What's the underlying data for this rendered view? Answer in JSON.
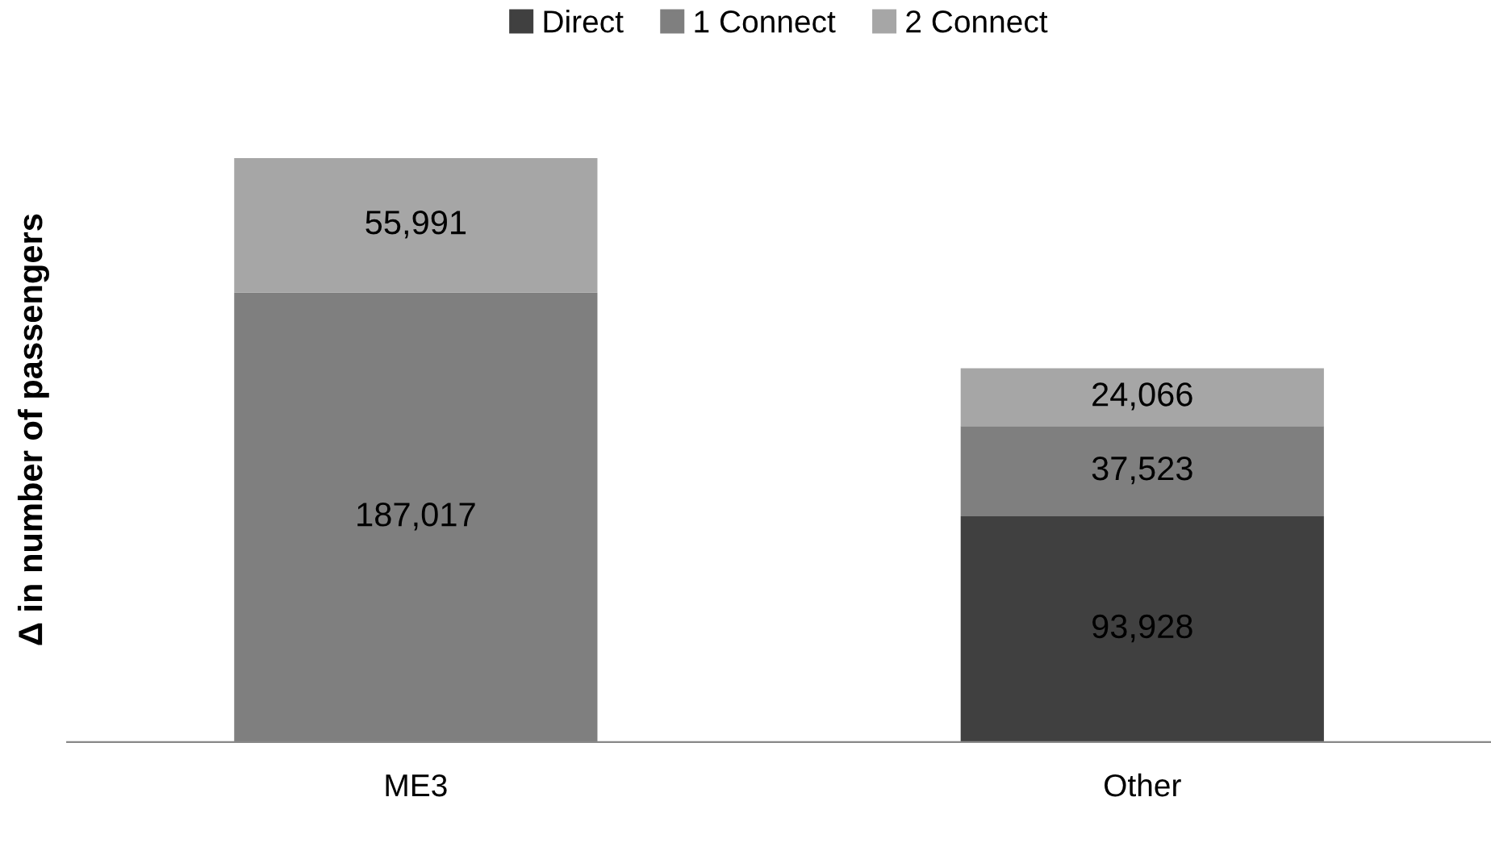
{
  "chart_data": {
    "type": "bar",
    "stacked": true,
    "ylabel": "Δ in number of passengers",
    "categories": [
      "ME3",
      "Other"
    ],
    "series": [
      {
        "name": "Direct",
        "color": "#404040",
        "values": [
          null,
          93928
        ],
        "value_labels": [
          null,
          "93,928"
        ]
      },
      {
        "name": "1 Connect",
        "color": "#7f7f7f",
        "values": [
          187017,
          37523
        ],
        "value_labels": [
          "187,017",
          "37,523"
        ]
      },
      {
        "name": "2 Connect",
        "color": "#a6a6a6",
        "values": [
          55991,
          24066
        ],
        "value_labels": [
          "55,991",
          "24,066"
        ]
      }
    ],
    "legend": "top"
  }
}
